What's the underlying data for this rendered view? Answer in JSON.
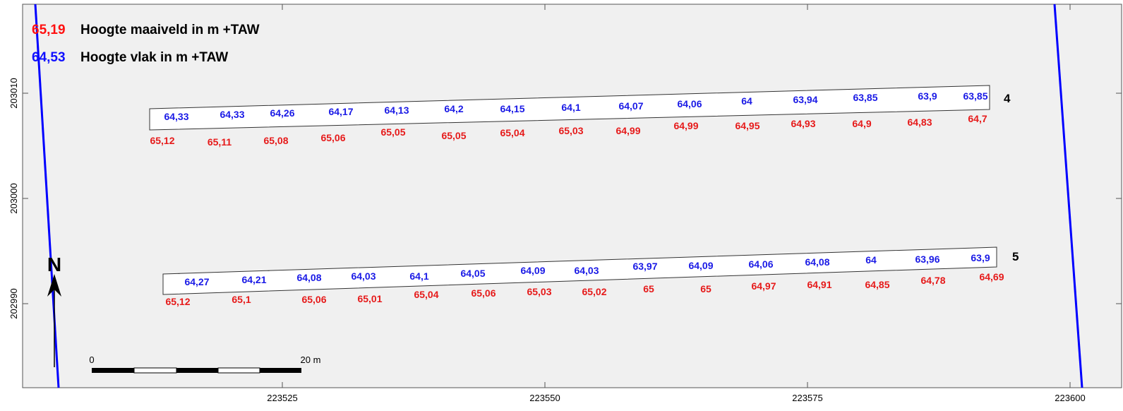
{
  "legend": {
    "maaiveld": {
      "value": "65,19",
      "text": "Hoogte maaiveld in m +TAW",
      "color": "#ff1010"
    },
    "vlak": {
      "value": "64,53",
      "text": "Hoogte vlak in m +TAW",
      "color": "#1010ff"
    }
  },
  "axes": {
    "x_ticks": [
      "223525",
      "223550",
      "223575",
      "223600"
    ],
    "y_ticks": [
      "203010",
      "203000",
      "202990"
    ]
  },
  "north_label": "N",
  "scale": {
    "start": "0",
    "end": "20 m"
  },
  "plots": [
    {
      "id": "4",
      "blue": [
        "64,33",
        "64,33",
        "64,26",
        "64,17",
        "64,13",
        "64,2",
        "64,15",
        "64,1",
        "64,07",
        "64,06",
        "64",
        "63,94",
        "63,85",
        "63,9",
        "63,85"
      ],
      "red": [
        "65,12",
        "65,11",
        "65,08",
        "65,06",
        "65,05",
        "65,05",
        "65,04",
        "65,03",
        "64,99",
        "64,99",
        "64,95",
        "64,93",
        "64,9",
        "64,83",
        "64,7"
      ]
    },
    {
      "id": "5",
      "blue": [
        "64,27",
        "64,21",
        "64,08",
        "64,03",
        "64,1",
        "64,05",
        "64,09",
        "64,03",
        "63,97",
        "64,09",
        "64,06",
        "64,08",
        "64",
        "63,96",
        "63,9"
      ],
      "red": [
        "65,12",
        "65,1",
        "65,06",
        "65,01",
        "65,04",
        "65,06",
        "65,03",
        "65,02",
        "65",
        "65",
        "64,97",
        "64,91",
        "64,85",
        "64,78",
        "64,69"
      ]
    }
  ],
  "colors": {
    "background": "#f0f0f0",
    "boundary": "#0000ff",
    "blue_label": "#1a1ae6",
    "red_label": "#e61a1a"
  }
}
